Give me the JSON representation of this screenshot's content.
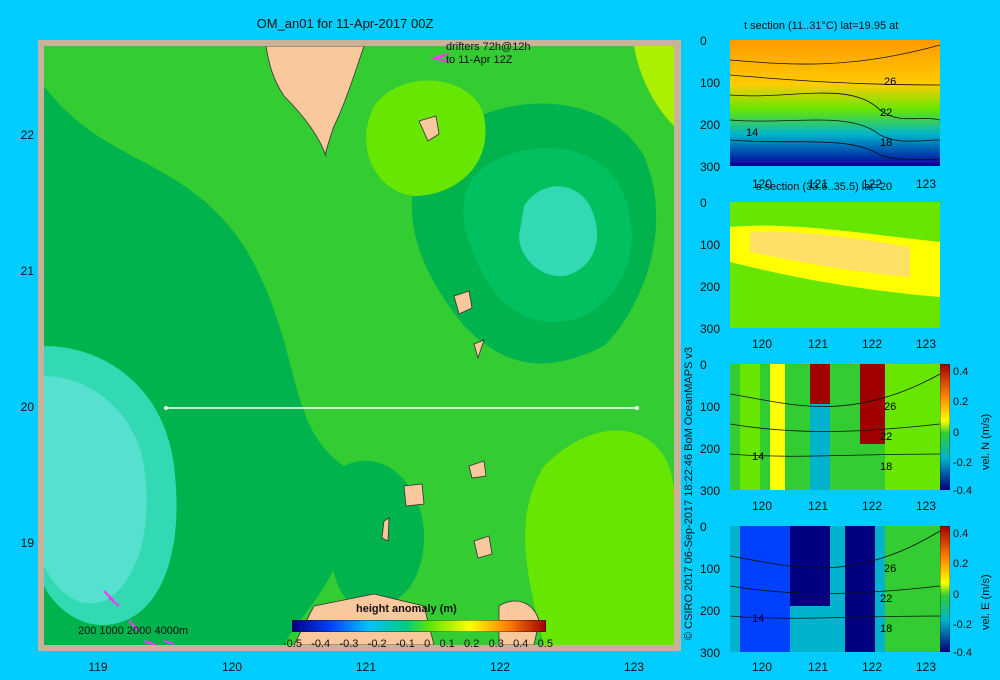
{
  "title": "OM_an01 for 11-Apr-2017 00Z",
  "drifters": {
    "line1": "drifters 72h@12h",
    "line2": "to 11-Apr 12Z"
  },
  "map": {
    "lat_ticks": [
      "22",
      "21",
      "20",
      "19"
    ],
    "lon_ticks": [
      "119",
      "120",
      "121",
      "122",
      "123"
    ],
    "depth_legend": "200  1000  2000  4000m",
    "colors": {
      "sea_green": "#33cc33",
      "dark_green": "#00b34d",
      "light_green": "#66e600",
      "teal": "#00cc80",
      "cyan": "#33d9b3",
      "land": "#f9c89c"
    }
  },
  "colorbar": {
    "title": "height anomaly  (m)",
    "labels": [
      "-0.5",
      "-0.4",
      "-0.3",
      "-0.2",
      "-0.1",
      "0",
      "0.1",
      "0.2",
      "0.3",
      "0.4",
      "0.5"
    ]
  },
  "credit": "© CSIRO 2017   06-Sep-2017 18:22:46 BoM OceanMAPS v3",
  "panels": [
    {
      "title": "t section (11..31°C) lat=19.95 at",
      "contours": [
        "26",
        "22",
        "18",
        "14"
      ]
    },
    {
      "title": "s section (33.6..35.5) lat=20",
      "contours": []
    },
    {
      "title": "",
      "contours": [
        "26",
        "22",
        "18",
        "14"
      ],
      "side_label": "vel. N (m/s)"
    },
    {
      "title": "",
      "contours": [
        "26",
        "22",
        "18",
        "14"
      ],
      "side_label": "vel. E (m/s)"
    }
  ],
  "section_axes": {
    "depth_ticks": [
      "0",
      "100",
      "200",
      "300"
    ],
    "lon_ticks": [
      "120",
      "121",
      "122",
      "123"
    ]
  },
  "vel_colorbar": {
    "labels": [
      "0.4",
      "0.2",
      "0",
      "-0.2",
      "-0.4"
    ]
  }
}
